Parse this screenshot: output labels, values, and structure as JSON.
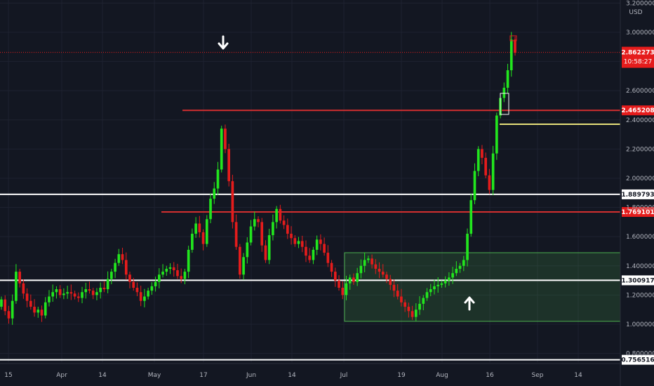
{
  "currency": "USD",
  "price_tag": {
    "value": "2.862273",
    "countdown": "10:58:27"
  },
  "chart_data": {
    "type": "candlestick",
    "title": "",
    "grid": true,
    "ylim": [
      0.76,
      3.2
    ],
    "y_ticks": [
      "1.000000",
      "1.200000",
      "1.400000",
      "1.600000",
      "1.800000",
      "2.000000",
      "2.200000",
      "2.400000",
      "2.600000",
      "2.800000",
      "3.000000",
      "3.200000",
      "0.800000"
    ],
    "x_ticks": [
      "15",
      "Apr",
      "14",
      "May",
      "17",
      "Jun",
      "14",
      "Jul",
      "19",
      "Aug",
      "16",
      "Sep",
      "14"
    ],
    "levels": [
      {
        "name": "level-1",
        "value": 2.465208,
        "label": "2.465208",
        "color": "#d32f2f"
      },
      {
        "name": "level-2",
        "value": 1.889793,
        "label": "1.889793",
        "color": "#ffffff"
      },
      {
        "name": "level-3",
        "value": 1.769101,
        "label": "1.769101",
        "color": "#d32f2f"
      },
      {
        "name": "level-4",
        "value": 1.300917,
        "label": "1.300917",
        "color": "#ffffff"
      },
      {
        "name": "level-5",
        "value": 0.756516,
        "label": "0.756516",
        "color": "#ffffff"
      },
      {
        "name": "level-6",
        "value": 2.37,
        "label": "",
        "color": "#e6e07a"
      }
    ],
    "zone": {
      "y_low": 1.02,
      "y_high": 1.49
    },
    "arrows": [
      {
        "direction": "down"
      },
      {
        "direction": "up"
      }
    ],
    "colors": {
      "up": "#22e61e",
      "down": "#e51c1c",
      "background": "#131722"
    },
    "closes": [
      1.17,
      1.09,
      1.04,
      1.16,
      1.36,
      1.28,
      1.21,
      1.16,
      1.12,
      1.08,
      1.1,
      1.06,
      1.15,
      1.19,
      1.22,
      1.24,
      1.2,
      1.21,
      1.22,
      1.21,
      1.19,
      1.18,
      1.22,
      1.24,
      1.23,
      1.2,
      1.22,
      1.25,
      1.24,
      1.31,
      1.36,
      1.42,
      1.48,
      1.44,
      1.34,
      1.29,
      1.25,
      1.22,
      1.16,
      1.19,
      1.23,
      1.26,
      1.29,
      1.34,
      1.36,
      1.38,
      1.39,
      1.37,
      1.33,
      1.31,
      1.36,
      1.51,
      1.62,
      1.69,
      1.63,
      1.55,
      1.72,
      1.86,
      1.93,
      2.06,
      2.34,
      2.2,
      1.98,
      1.7,
      1.53,
      1.34,
      1.46,
      1.56,
      1.67,
      1.72,
      1.7,
      1.54,
      1.44,
      1.61,
      1.7,
      1.79,
      1.71,
      1.68,
      1.62,
      1.59,
      1.55,
      1.57,
      1.53,
      1.47,
      1.44,
      1.51,
      1.58,
      1.55,
      1.49,
      1.42,
      1.36,
      1.3,
      1.25,
      1.2,
      1.28,
      1.32,
      1.29,
      1.35,
      1.4,
      1.44,
      1.45,
      1.41,
      1.38,
      1.36,
      1.34,
      1.31,
      1.27,
      1.23,
      1.19,
      1.15,
      1.12,
      1.09,
      1.05,
      1.1,
      1.14,
      1.18,
      1.22,
      1.24,
      1.26,
      1.27,
      1.28,
      1.3,
      1.32,
      1.35,
      1.38,
      1.4,
      1.44,
      1.62,
      1.85,
      2.05,
      2.2,
      2.14,
      2.02,
      1.92,
      2.17,
      2.43,
      2.55,
      2.62,
      2.74,
      2.95,
      2.86
    ]
  }
}
